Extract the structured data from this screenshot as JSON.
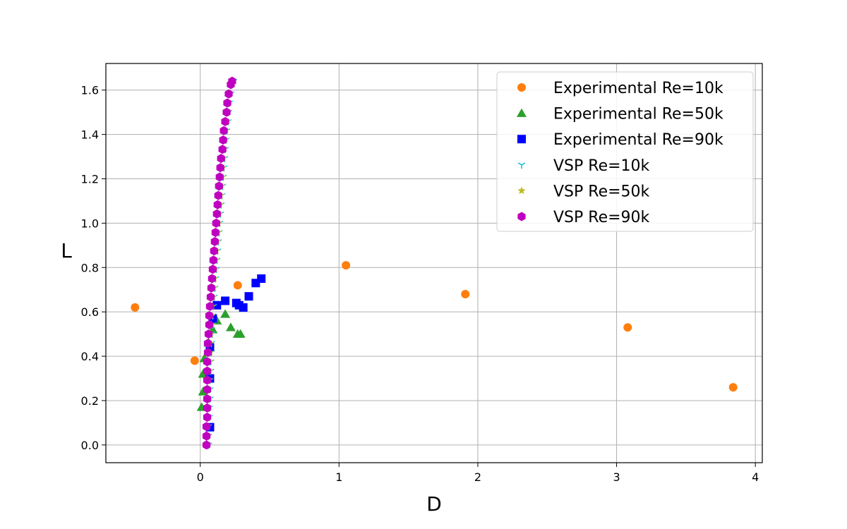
{
  "chart_data": {
    "type": "scatter",
    "title": "",
    "xlabel": "D",
    "ylabel": "L",
    "xlim": [
      -0.68,
      4.05
    ],
    "ylim": [
      -0.08,
      1.72
    ],
    "xticks": [
      0,
      1,
      2,
      3,
      4
    ],
    "yticks": [
      0.0,
      0.2,
      0.4,
      0.6,
      0.8,
      1.0,
      1.2,
      1.4,
      1.6
    ],
    "xtick_labels": [
      "0",
      "1",
      "2",
      "3",
      "4"
    ],
    "ytick_labels": [
      "0.0",
      "0.2",
      "0.4",
      "0.6",
      "0.8",
      "1.0",
      "1.2",
      "1.4",
      "1.6"
    ],
    "grid": true,
    "legend_position": "top-right",
    "series": [
      {
        "name": "Experimental Re=10k",
        "marker": "circle",
        "color": "#ff7f0e",
        "points": [
          [
            -0.47,
            0.62
          ],
          [
            -0.04,
            0.38
          ],
          [
            0.27,
            0.72
          ],
          [
            1.05,
            0.81
          ],
          [
            1.91,
            0.68
          ],
          [
            3.08,
            0.53
          ],
          [
            3.84,
            0.26
          ]
        ]
      },
      {
        "name": "Experimental Re=50k",
        "marker": "triangle",
        "color": "#2ca02c",
        "points": [
          [
            0.01,
            0.17
          ],
          [
            0.02,
            0.24
          ],
          [
            0.02,
            0.32
          ],
          [
            0.03,
            0.39
          ],
          [
            0.06,
            0.46
          ],
          [
            0.09,
            0.52
          ],
          [
            0.12,
            0.56
          ],
          [
            0.18,
            0.59
          ],
          [
            0.22,
            0.53
          ],
          [
            0.27,
            0.5
          ],
          [
            0.29,
            0.5
          ]
        ]
      },
      {
        "name": "Experimental Re=90k",
        "marker": "square",
        "color": "#0000ff",
        "points": [
          [
            0.07,
            0.08
          ],
          [
            0.07,
            0.3
          ],
          [
            0.07,
            0.44
          ],
          [
            0.09,
            0.57
          ],
          [
            0.12,
            0.63
          ],
          [
            0.18,
            0.65
          ],
          [
            0.26,
            0.64
          ],
          [
            0.28,
            0.63
          ],
          [
            0.31,
            0.62
          ],
          [
            0.35,
            0.67
          ],
          [
            0.4,
            0.73
          ],
          [
            0.44,
            0.75
          ]
        ]
      },
      {
        "name": "VSP Re=10k",
        "marker": "tri_down",
        "color": "#17becf",
        "points": [
          [
            0.06,
            0.0
          ],
          [
            0.06,
            0.04
          ],
          [
            0.06,
            0.083
          ],
          [
            0.065,
            0.125
          ],
          [
            0.065,
            0.167
          ],
          [
            0.07,
            0.208
          ],
          [
            0.07,
            0.25
          ],
          [
            0.07,
            0.292
          ],
          [
            0.075,
            0.333
          ],
          [
            0.075,
            0.375
          ],
          [
            0.08,
            0.417
          ],
          [
            0.08,
            0.458
          ],
          [
            0.085,
            0.5
          ],
          [
            0.09,
            0.542
          ],
          [
            0.09,
            0.583
          ],
          [
            0.095,
            0.625
          ],
          [
            0.1,
            0.667
          ],
          [
            0.105,
            0.708
          ],
          [
            0.11,
            0.75
          ],
          [
            0.115,
            0.792
          ],
          [
            0.12,
            0.833
          ],
          [
            0.125,
            0.875
          ],
          [
            0.13,
            0.917
          ],
          [
            0.135,
            0.958
          ],
          [
            0.14,
            1.0
          ],
          [
            0.145,
            1.042
          ],
          [
            0.15,
            1.083
          ],
          [
            0.155,
            1.125
          ],
          [
            0.16,
            1.167
          ],
          [
            0.165,
            1.208
          ],
          [
            0.17,
            1.25
          ],
          [
            0.175,
            1.292
          ],
          [
            0.18,
            1.333
          ],
          [
            0.185,
            1.375
          ],
          [
            0.19,
            1.417
          ],
          [
            0.2,
            1.458
          ],
          [
            0.205,
            1.5
          ],
          [
            0.21,
            1.542
          ],
          [
            0.22,
            1.583
          ],
          [
            0.23,
            1.625
          ],
          [
            0.24,
            1.64
          ]
        ]
      },
      {
        "name": "VSP Re=50k",
        "marker": "star",
        "color": "#bcbd22",
        "points": [
          [
            0.05,
            0.0
          ],
          [
            0.05,
            0.04
          ],
          [
            0.05,
            0.083
          ],
          [
            0.055,
            0.125
          ],
          [
            0.055,
            0.167
          ],
          [
            0.06,
            0.208
          ],
          [
            0.06,
            0.25
          ],
          [
            0.06,
            0.292
          ],
          [
            0.065,
            0.333
          ],
          [
            0.065,
            0.375
          ],
          [
            0.07,
            0.417
          ],
          [
            0.07,
            0.458
          ],
          [
            0.075,
            0.5
          ],
          [
            0.08,
            0.542
          ],
          [
            0.08,
            0.583
          ],
          [
            0.085,
            0.625
          ],
          [
            0.09,
            0.667
          ],
          [
            0.095,
            0.708
          ],
          [
            0.1,
            0.75
          ],
          [
            0.105,
            0.792
          ],
          [
            0.11,
            0.833
          ],
          [
            0.115,
            0.875
          ],
          [
            0.12,
            0.917
          ],
          [
            0.125,
            0.958
          ],
          [
            0.13,
            1.0
          ],
          [
            0.135,
            1.042
          ],
          [
            0.14,
            1.083
          ],
          [
            0.145,
            1.125
          ],
          [
            0.15,
            1.167
          ],
          [
            0.155,
            1.208
          ],
          [
            0.16,
            1.25
          ],
          [
            0.165,
            1.292
          ],
          [
            0.17,
            1.333
          ],
          [
            0.175,
            1.375
          ],
          [
            0.18,
            1.417
          ],
          [
            0.19,
            1.458
          ],
          [
            0.195,
            1.5
          ],
          [
            0.2,
            1.542
          ],
          [
            0.21,
            1.583
          ],
          [
            0.22,
            1.625
          ]
        ]
      },
      {
        "name": "VSP Re=90k",
        "marker": "hexagon",
        "color": "#c000c0",
        "points": [
          [
            0.045,
            0.0
          ],
          [
            0.045,
            0.04
          ],
          [
            0.045,
            0.083
          ],
          [
            0.05,
            0.125
          ],
          [
            0.05,
            0.167
          ],
          [
            0.05,
            0.208
          ],
          [
            0.05,
            0.25
          ],
          [
            0.05,
            0.292
          ],
          [
            0.05,
            0.333
          ],
          [
            0.05,
            0.375
          ],
          [
            0.055,
            0.417
          ],
          [
            0.055,
            0.458
          ],
          [
            0.06,
            0.5
          ],
          [
            0.065,
            0.542
          ],
          [
            0.065,
            0.583
          ],
          [
            0.07,
            0.625
          ],
          [
            0.075,
            0.667
          ],
          [
            0.08,
            0.708
          ],
          [
            0.085,
            0.75
          ],
          [
            0.09,
            0.792
          ],
          [
            0.095,
            0.833
          ],
          [
            0.1,
            0.875
          ],
          [
            0.105,
            0.917
          ],
          [
            0.11,
            0.958
          ],
          [
            0.115,
            1.0
          ],
          [
            0.12,
            1.042
          ],
          [
            0.125,
            1.083
          ],
          [
            0.13,
            1.125
          ],
          [
            0.135,
            1.167
          ],
          [
            0.14,
            1.208
          ],
          [
            0.145,
            1.25
          ],
          [
            0.15,
            1.292
          ],
          [
            0.16,
            1.333
          ],
          [
            0.165,
            1.375
          ],
          [
            0.17,
            1.417
          ],
          [
            0.18,
            1.458
          ],
          [
            0.19,
            1.5
          ],
          [
            0.195,
            1.542
          ],
          [
            0.205,
            1.583
          ],
          [
            0.22,
            1.625
          ],
          [
            0.23,
            1.64
          ]
        ]
      }
    ]
  }
}
